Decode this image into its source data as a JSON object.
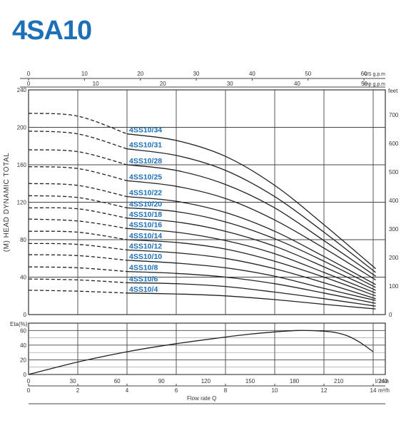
{
  "title": "4SA10",
  "chart_data": [
    {
      "type": "line",
      "title": "4SA10",
      "ylabel": "(M) HEAD DYNAMIC TOTAL",
      "ylabel_right": "feet",
      "xlim": [
        0,
        14.7
      ],
      "ylim": [
        0,
        240
      ],
      "grid": true,
      "y_ticks": [
        0,
        40,
        80,
        120,
        160,
        200,
        240
      ],
      "y_ticks_right": [
        0,
        100,
        200,
        300,
        400,
        500,
        600,
        700
      ],
      "x_top_axes": [
        {
          "unit": "US g.p.m",
          "ticks": [
            0,
            10,
            20,
            30,
            40,
            50,
            60
          ]
        },
        {
          "unit": "Imp g.p.m",
          "ticks": [
            0,
            10,
            20,
            30,
            40,
            50
          ]
        }
      ],
      "dashed_below_flow": 4,
      "series": [
        {
          "name": "4SS10/34",
          "values": [
            [
              0,
              215
            ],
            [
              2,
              212
            ],
            [
              4,
              193
            ],
            [
              6,
              186
            ],
            [
              8,
              169
            ],
            [
              10,
              138
            ],
            [
              12,
              96
            ],
            [
              14.1,
              49
            ]
          ]
        },
        {
          "name": "4SS10/31",
          "values": [
            [
              0,
              196
            ],
            [
              2,
              193
            ],
            [
              4,
              177
            ],
            [
              6,
              170
            ],
            [
              8,
              154
            ],
            [
              10,
              126
            ],
            [
              12,
              88
            ],
            [
              14.1,
              45
            ]
          ]
        },
        {
          "name": "4SS10/28",
          "values": [
            [
              0,
              176
            ],
            [
              2,
              174
            ],
            [
              4,
              160
            ],
            [
              6,
              154
            ],
            [
              8,
              139
            ],
            [
              10,
              114
            ],
            [
              12,
              79
            ],
            [
              14.1,
              41
            ]
          ]
        },
        {
          "name": "4SS10/25",
          "values": [
            [
              0,
              158
            ],
            [
              2,
              156
            ],
            [
              4,
              143
            ],
            [
              6,
              137
            ],
            [
              8,
              124
            ],
            [
              10,
              101
            ],
            [
              12,
              71
            ],
            [
              14.1,
              37
            ]
          ]
        },
        {
          "name": "4SS10/22",
          "values": [
            [
              0,
              140
            ],
            [
              2,
              138
            ],
            [
              4,
              126
            ],
            [
              6,
              121
            ],
            [
              8,
              109
            ],
            [
              10,
              89
            ],
            [
              12,
              62
            ],
            [
              14.1,
              32
            ]
          ]
        },
        {
          "name": "4SS10/20",
          "values": [
            [
              0,
              127
            ],
            [
              2,
              125
            ],
            [
              4,
              114
            ],
            [
              6,
              110
            ],
            [
              8,
              99
            ],
            [
              10,
              81
            ],
            [
              12,
              57
            ],
            [
              14.1,
              29
            ]
          ]
        },
        {
          "name": "4SS10/18",
          "values": [
            [
              0,
              114
            ],
            [
              2,
              113
            ],
            [
              4,
              103
            ],
            [
              6,
              99
            ],
            [
              8,
              89
            ],
            [
              10,
              73
            ],
            [
              12,
              51
            ],
            [
              14.1,
              26
            ]
          ]
        },
        {
          "name": "4SS10/16",
          "values": [
            [
              0,
              102
            ],
            [
              2,
              100
            ],
            [
              4,
              92
            ],
            [
              6,
              88
            ],
            [
              8,
              79
            ],
            [
              10,
              65
            ],
            [
              12,
              45
            ],
            [
              14.1,
              23
            ]
          ]
        },
        {
          "name": "4SS10/14",
          "values": [
            [
              0,
              89
            ],
            [
              2,
              88
            ],
            [
              4,
              80
            ],
            [
              6,
              77
            ],
            [
              8,
              70
            ],
            [
              10,
              57
            ],
            [
              12,
              40
            ],
            [
              14.1,
              20
            ]
          ]
        },
        {
          "name": "4SS10/12",
          "values": [
            [
              0,
              76
            ],
            [
              2,
              75
            ],
            [
              4,
              69
            ],
            [
              6,
              66
            ],
            [
              8,
              60
            ],
            [
              10,
              49
            ],
            [
              12,
              34
            ],
            [
              14.1,
              17
            ]
          ]
        },
        {
          "name": "4SS10/10",
          "values": [
            [
              0,
              64
            ],
            [
              2,
              63
            ],
            [
              4,
              58
            ],
            [
              6,
              55
            ],
            [
              8,
              50
            ],
            [
              10,
              41
            ],
            [
              12,
              28
            ],
            [
              14.1,
              15
            ]
          ]
        },
        {
          "name": "4SS10/8",
          "values": [
            [
              0,
              51
            ],
            [
              2,
              50
            ],
            [
              4,
              46
            ],
            [
              6,
              44
            ],
            [
              8,
              40
            ],
            [
              10,
              33
            ],
            [
              12,
              23
            ],
            [
              14.1,
              12
            ]
          ]
        },
        {
          "name": "4SS10/6",
          "values": [
            [
              0,
              38
            ],
            [
              2,
              37
            ],
            [
              4,
              34
            ],
            [
              6,
              33
            ],
            [
              8,
              30
            ],
            [
              10,
              24
            ],
            [
              12,
              17
            ],
            [
              14.1,
              9
            ]
          ]
        },
        {
          "name": "4SS10/4",
          "values": [
            [
              0,
              26
            ],
            [
              2,
              25
            ],
            [
              4,
              23
            ],
            [
              6,
              22
            ],
            [
              8,
              20
            ],
            [
              10,
              16
            ],
            [
              12,
              11
            ],
            [
              14.1,
              6
            ]
          ]
        }
      ]
    },
    {
      "type": "line",
      "ylabel": "Eta(%)",
      "ylim": [
        0,
        70
      ],
      "y_ticks": [
        0,
        20,
        40,
        60
      ],
      "grid": true,
      "x_bottom_axes": [
        {
          "unit": "l/ min",
          "ticks": [
            0,
            30,
            60,
            90,
            120,
            150,
            180,
            210,
            240
          ]
        },
        {
          "unit": "m³/h",
          "ticks": [
            0,
            2,
            4,
            6,
            8,
            10,
            12,
            14
          ]
        }
      ],
      "xlabel": "Flow rate  Q",
      "series": [
        {
          "values": [
            [
              0,
              0
            ],
            [
              2,
              17
            ],
            [
              4,
              31
            ],
            [
              6,
              42
            ],
            [
              8,
              51
            ],
            [
              9,
              55
            ],
            [
              10,
              58
            ],
            [
              11,
              60
            ],
            [
              12,
              59
            ],
            [
              12.5,
              57
            ],
            [
              13,
              52
            ],
            [
              13.5,
              43
            ],
            [
              14,
              31
            ]
          ]
        }
      ]
    }
  ]
}
